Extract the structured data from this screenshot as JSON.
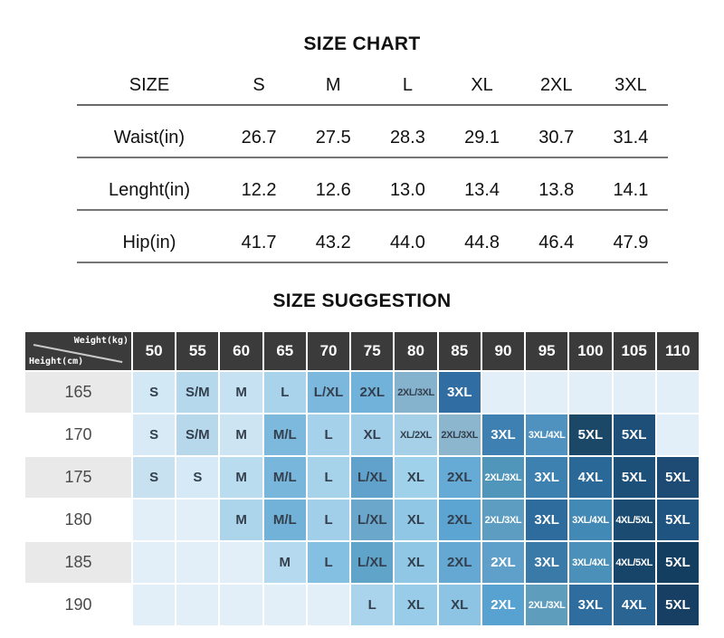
{
  "size_chart": {
    "title": "SIZE CHART",
    "header": [
      "SIZE",
      "S",
      "M",
      "L",
      "XL",
      "2XL",
      "3XL"
    ],
    "rows": [
      {
        "label": "Waist(in)",
        "values": [
          "26.7",
          "27.5",
          "28.3",
          "29.1",
          "30.7",
          "31.4"
        ]
      },
      {
        "label": "Lenght(in)",
        "values": [
          "12.2",
          "12.6",
          "13.0",
          "13.4",
          "13.8",
          "14.1"
        ]
      },
      {
        "label": "Hip(in)",
        "values": [
          "41.7",
          "43.2",
          "44.0",
          "44.8",
          "46.4",
          "47.9"
        ]
      }
    ]
  },
  "size_suggestion": {
    "title": "SIZE SUGGESTION",
    "corner": {
      "top_right": "Weight(kg)",
      "bottom_left": "Height(cm)"
    },
    "weights": [
      "50",
      "55",
      "60",
      "65",
      "70",
      "75",
      "80",
      "85",
      "90",
      "95",
      "100",
      "105",
      "110"
    ],
    "colors": {
      "header_bg": "#3b3b3b",
      "header_fg": "#ffffff",
      "row_label_alt_bg": "#e9e9e9",
      "row_label_bg": "#ffffff",
      "empty_bg": "#e3eff8",
      "dark_text": "#333f4d",
      "white_text": "#ffffff",
      "diag_line": "#c9c9c9"
    },
    "rows": [
      {
        "height": "165",
        "cells": [
          {
            "label": "S",
            "bg": "#d3e8f5",
            "fg": "#333f4d"
          },
          {
            "label": "S/M",
            "bg": "#b5d8ec",
            "fg": "#333f4d"
          },
          {
            "label": "M",
            "bg": "#c6e1f2",
            "fg": "#333f4d"
          },
          {
            "label": "L",
            "bg": "#a9d2eb",
            "fg": "#333f4d"
          },
          {
            "label": "L/XL",
            "bg": "#7cb8dd",
            "fg": "#333f4d"
          },
          {
            "label": "2XL",
            "bg": "#70b2da",
            "fg": "#333f4d"
          },
          {
            "label": "2XL/3XL",
            "bg": "#85b3cd",
            "fg": "#333f4d"
          },
          {
            "label": "3XL",
            "bg": "#2f6da3",
            "fg": "#ffffff"
          },
          {
            "label": "",
            "bg": "#e3eff8",
            "fg": "#333f4d"
          },
          {
            "label": "",
            "bg": "#e3eff8",
            "fg": "#333f4d"
          },
          {
            "label": "",
            "bg": "#e3eff8",
            "fg": "#333f4d"
          },
          {
            "label": "",
            "bg": "#e3eff8",
            "fg": "#333f4d"
          },
          {
            "label": "",
            "bg": "#e3eff8",
            "fg": "#333f4d"
          }
        ]
      },
      {
        "height": "170",
        "cells": [
          {
            "label": "S",
            "bg": "#d7eaf6",
            "fg": "#333f4d"
          },
          {
            "label": "S/M",
            "bg": "#b7d8eb",
            "fg": "#333f4d"
          },
          {
            "label": "M",
            "bg": "#cde4f3",
            "fg": "#333f4d"
          },
          {
            "label": "M/L",
            "bg": "#7db9dd",
            "fg": "#333f4d"
          },
          {
            "label": "L",
            "bg": "#a6d1ea",
            "fg": "#333f4d"
          },
          {
            "label": "XL",
            "bg": "#a0cee9",
            "fg": "#333f4d"
          },
          {
            "label": "XL/2XL",
            "bg": "#a5d0e8",
            "fg": "#333f4d"
          },
          {
            "label": "2XL/3XL",
            "bg": "#8bb6cd",
            "fg": "#333f4d"
          },
          {
            "label": "3XL",
            "bg": "#3f80b2",
            "fg": "#ffffff"
          },
          {
            "label": "3XL/4XL",
            "bg": "#4f92bf",
            "fg": "#ffffff"
          },
          {
            "label": "5XL",
            "bg": "#1c4868",
            "fg": "#ffffff"
          },
          {
            "label": "5XL",
            "bg": "#1e4f78",
            "fg": "#ffffff"
          },
          {
            "label": "",
            "bg": "#e3eff8",
            "fg": "#333f4d"
          }
        ]
      },
      {
        "height": "175",
        "cells": [
          {
            "label": "S",
            "bg": "#c8e1f1",
            "fg": "#333f4d"
          },
          {
            "label": "S",
            "bg": "#d5eaf6",
            "fg": "#333f4d"
          },
          {
            "label": "M",
            "bg": "#badcef",
            "fg": "#333f4d"
          },
          {
            "label": "M/L",
            "bg": "#79b6db",
            "fg": "#333f4d"
          },
          {
            "label": "L",
            "bg": "#a6d2ea",
            "fg": "#333f4d"
          },
          {
            "label": "L/XL",
            "bg": "#61a2cc",
            "fg": "#333f4d"
          },
          {
            "label": "XL",
            "bg": "#a0d1eb",
            "fg": "#333f4d"
          },
          {
            "label": "2XL",
            "bg": "#66abd5",
            "fg": "#333f4d"
          },
          {
            "label": "2XL/3XL",
            "bg": "#5095ba",
            "fg": "#ffffff"
          },
          {
            "label": "3XL",
            "bg": "#3d81b0",
            "fg": "#ffffff"
          },
          {
            "label": "4XL",
            "bg": "#2a6898",
            "fg": "#ffffff"
          },
          {
            "label": "5XL",
            "bg": "#1d5078",
            "fg": "#ffffff"
          },
          {
            "label": "5XL",
            "bg": "#1e4b73",
            "fg": "#ffffff"
          }
        ]
      },
      {
        "height": "180",
        "cells": [
          {
            "label": "",
            "bg": "#e3eff8",
            "fg": "#333f4d"
          },
          {
            "label": "",
            "bg": "#e3eff8",
            "fg": "#333f4d"
          },
          {
            "label": "M",
            "bg": "#acd5ec",
            "fg": "#333f4d"
          },
          {
            "label": "M/L",
            "bg": "#72b1d8",
            "fg": "#333f4d"
          },
          {
            "label": "L",
            "bg": "#a1cfe9",
            "fg": "#333f4d"
          },
          {
            "label": "L/XL",
            "bg": "#6ba6cb",
            "fg": "#333f4d"
          },
          {
            "label": "XL",
            "bg": "#90c7e4",
            "fg": "#333f4d"
          },
          {
            "label": "2XL",
            "bg": "#5ca4d1",
            "fg": "#333f4d"
          },
          {
            "label": "2XL/3XL",
            "bg": "#5c9dc1",
            "fg": "#ffffff"
          },
          {
            "label": "3XL",
            "bg": "#2e6c9e",
            "fg": "#ffffff"
          },
          {
            "label": "3XL/4XL",
            "bg": "#4389b5",
            "fg": "#ffffff"
          },
          {
            "label": "4XL/5XL",
            "bg": "#1b4b71",
            "fg": "#ffffff"
          },
          {
            "label": "5XL",
            "bg": "#205480",
            "fg": "#ffffff"
          }
        ]
      },
      {
        "height": "185",
        "cells": [
          {
            "label": "",
            "bg": "#e3eff8",
            "fg": "#333f4d"
          },
          {
            "label": "",
            "bg": "#e3eff8",
            "fg": "#333f4d"
          },
          {
            "label": "",
            "bg": "#e3eff8",
            "fg": "#333f4d"
          },
          {
            "label": "M",
            "bg": "#b5d9ee",
            "fg": "#333f4d"
          },
          {
            "label": "L",
            "bg": "#84c0e1",
            "fg": "#333f4d"
          },
          {
            "label": "L/XL",
            "bg": "#60a4ca",
            "fg": "#333f4d"
          },
          {
            "label": "XL",
            "bg": "#8fc7e4",
            "fg": "#333f4d"
          },
          {
            "label": "2XL",
            "bg": "#64a8d3",
            "fg": "#333f4d"
          },
          {
            "label": "2XL",
            "bg": "#5fa0ca",
            "fg": "#ffffff"
          },
          {
            "label": "3XL",
            "bg": "#3a7aa8",
            "fg": "#ffffff"
          },
          {
            "label": "3XL/4XL",
            "bg": "#4a90b8",
            "fg": "#ffffff"
          },
          {
            "label": "4XL/5XL",
            "bg": "#174569",
            "fg": "#ffffff"
          },
          {
            "label": "5XL",
            "bg": "#133e60",
            "fg": "#ffffff"
          }
        ]
      },
      {
        "height": "190",
        "cells": [
          {
            "label": "",
            "bg": "#e3eff8",
            "fg": "#333f4d"
          },
          {
            "label": "",
            "bg": "#e3eff8",
            "fg": "#333f4d"
          },
          {
            "label": "",
            "bg": "#e3eff8",
            "fg": "#333f4d"
          },
          {
            "label": "",
            "bg": "#e3eff8",
            "fg": "#333f4d"
          },
          {
            "label": "",
            "bg": "#e3eff8",
            "fg": "#333f4d"
          },
          {
            "label": "L",
            "bg": "#a9d4ec",
            "fg": "#333f4d"
          },
          {
            "label": "XL",
            "bg": "#99cce8",
            "fg": "#333f4d"
          },
          {
            "label": "XL",
            "bg": "#8dc4e3",
            "fg": "#333f4d"
          },
          {
            "label": "2XL",
            "bg": "#58a2d2",
            "fg": "#ffffff"
          },
          {
            "label": "2XL/3XL",
            "bg": "#5f9dbd",
            "fg": "#ffffff"
          },
          {
            "label": "3XL",
            "bg": "#2e6d9e",
            "fg": "#ffffff"
          },
          {
            "label": "4XL",
            "bg": "#2a6492",
            "fg": "#ffffff"
          },
          {
            "label": "5XL",
            "bg": "#173f63",
            "fg": "#ffffff"
          }
        ]
      }
    ]
  },
  "chart_data": [
    {
      "type": "table",
      "title": "SIZE CHART",
      "columns": [
        "SIZE",
        "S",
        "M",
        "L",
        "XL",
        "2XL",
        "3XL"
      ],
      "rows": [
        [
          "Waist(in)",
          26.7,
          27.5,
          28.3,
          29.1,
          30.7,
          31.4
        ],
        [
          "Lenght(in)",
          12.2,
          12.6,
          13.0,
          13.4,
          13.8,
          14.1
        ],
        [
          "Hip(in)",
          41.7,
          43.2,
          44.0,
          44.8,
          46.4,
          47.9
        ]
      ]
    },
    {
      "type": "table",
      "title": "SIZE SUGGESTION",
      "xlabel": "Weight(kg)",
      "ylabel": "Height(cm)",
      "columns": [
        50,
        55,
        60,
        65,
        70,
        75,
        80,
        85,
        90,
        95,
        100,
        105,
        110
      ],
      "rows": [
        [
          "165",
          "S",
          "S/M",
          "M",
          "L",
          "L/XL",
          "2XL",
          "2XL/3XL",
          "3XL",
          "",
          "",
          "",
          "",
          ""
        ],
        [
          "170",
          "S",
          "S/M",
          "M",
          "M/L",
          "L",
          "XL",
          "XL/2XL",
          "2XL/3XL",
          "3XL",
          "3XL/4XL",
          "5XL",
          "5XL",
          ""
        ],
        [
          "175",
          "S",
          "S",
          "M",
          "M/L",
          "L",
          "L/XL",
          "XL",
          "2XL",
          "2XL/3XL",
          "3XL",
          "4XL",
          "5XL",
          "5XL"
        ],
        [
          "180",
          "",
          "",
          "M",
          "M/L",
          "L",
          "L/XL",
          "XL",
          "2XL",
          "2XL/3XL",
          "3XL",
          "3XL/4XL",
          "4XL/5XL",
          "5XL"
        ],
        [
          "185",
          "",
          "",
          "",
          "M",
          "L",
          "L/XL",
          "XL",
          "2XL",
          "2XL",
          "3XL",
          "3XL/4XL",
          "4XL/5XL",
          "5XL"
        ],
        [
          "190",
          "",
          "",
          "",
          "",
          "",
          "L",
          "XL",
          "XL",
          "2XL",
          "2XL/3XL",
          "3XL",
          "4XL",
          "5XL"
        ]
      ]
    }
  ]
}
